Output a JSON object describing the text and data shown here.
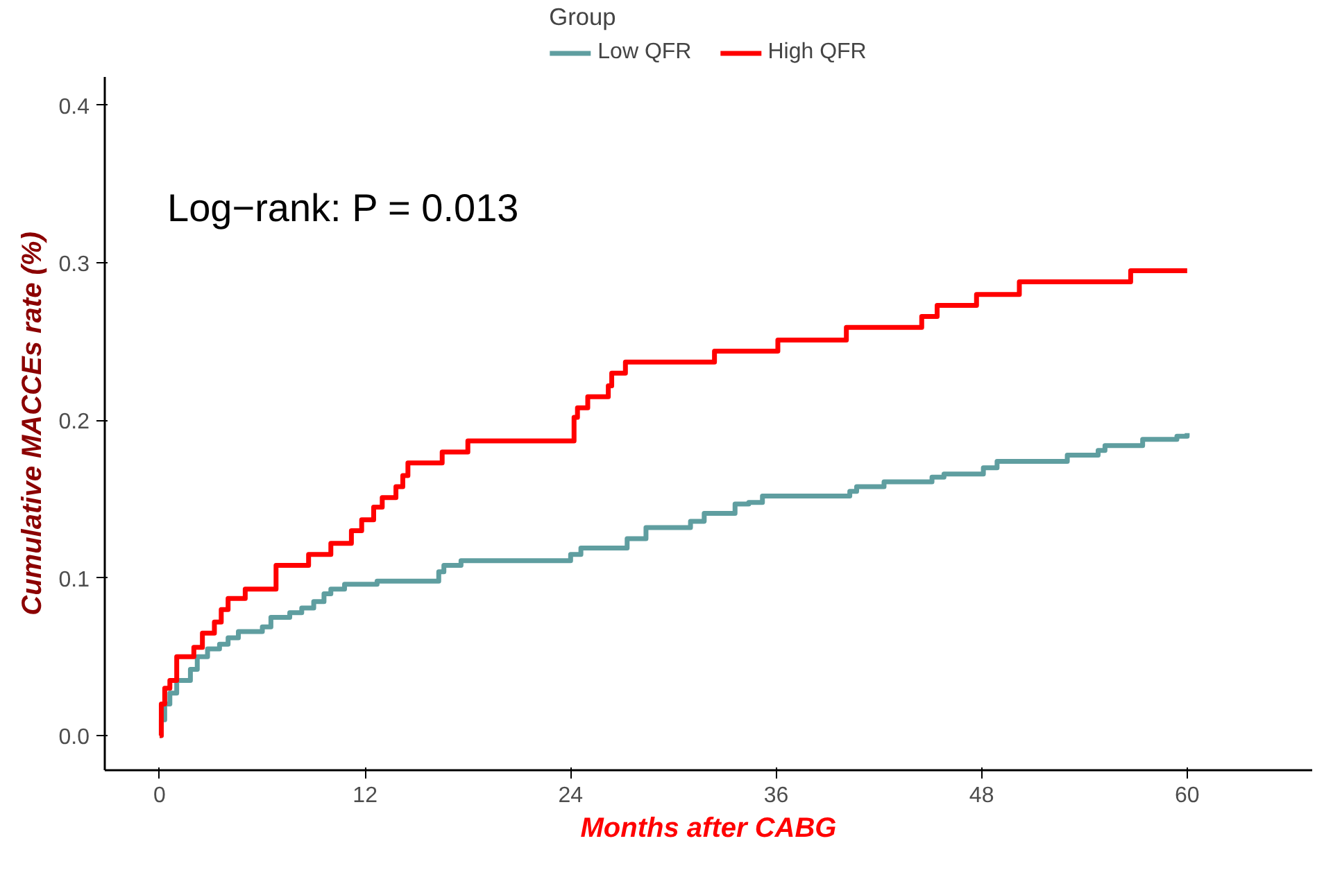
{
  "chart_data": {
    "type": "step",
    "xlabel": "Months after CABG",
    "ylabel": "Cumulative MACCEs rate (%)",
    "legend_title": "Group",
    "legend": "top",
    "grid": false,
    "annotations": [
      "Log−rank: P = 0.013"
    ],
    "xlim": [
      -3.2,
      67.3
    ],
    "xticks": [
      0,
      12,
      24,
      36,
      48,
      60
    ],
    "ylim": [
      -0.022,
      0.418
    ],
    "yticks": [
      {
        "value": 0,
        "label": "0.0"
      },
      {
        "value": 0.1,
        "label": "0.1"
      },
      {
        "value": 0.2,
        "label": "0.2"
      },
      {
        "value": 0.3,
        "label": "0.3"
      },
      {
        "value": 0.4,
        "label": "0.4"
      }
    ],
    "series": [
      {
        "name": "Low QFR",
        "color": "#5f9ea0",
        "x": [
          0,
          0.1,
          0.3,
          0.6,
          1.0,
          1.8,
          2.2,
          2.8,
          3.5,
          4,
          4.6,
          6,
          6.5,
          7.6,
          8.3,
          9,
          9.6,
          10,
          10.8,
          12.7,
          16.3,
          16.6,
          17.6,
          24,
          24.6,
          27.3,
          28.4,
          31,
          31.8,
          33.6,
          34.4,
          35.2,
          40.3,
          40.7,
          42.3,
          45.1,
          45.8,
          48.1,
          48.9,
          53,
          54.8,
          55.2,
          57.4,
          59.4,
          60
        ],
        "values": [
          0,
          0.01,
          0.02,
          0.027,
          0.035,
          0.042,
          0.05,
          0.055,
          0.058,
          0.062,
          0.066,
          0.069,
          0.075,
          0.078,
          0.081,
          0.085,
          0.09,
          0.093,
          0.096,
          0.098,
          0.104,
          0.108,
          0.111,
          0.115,
          0.119,
          0.125,
          0.132,
          0.136,
          0.141,
          0.147,
          0.148,
          0.152,
          0.155,
          0.158,
          0.161,
          0.164,
          0.166,
          0.17,
          0.174,
          0.178,
          0.181,
          0.184,
          0.188,
          0.19,
          0.192
        ]
      },
      {
        "name": "High QFR",
        "color": "#ff0000",
        "x": [
          0,
          0.1,
          0.3,
          0.6,
          1,
          2,
          2.5,
          3.2,
          3.6,
          4,
          5,
          6.8,
          8.7,
          10,
          11.2,
          11.8,
          12.5,
          13,
          13.8,
          14.2,
          14.5,
          16.5,
          18,
          24.2,
          24.4,
          25,
          26.2,
          26.4,
          27.2,
          32.4,
          36.1,
          40.1,
          44.5,
          45.4,
          47.7,
          50.2,
          56.7,
          60
        ],
        "values": [
          0,
          0.02,
          0.03,
          0.035,
          0.05,
          0.056,
          0.065,
          0.072,
          0.08,
          0.087,
          0.093,
          0.108,
          0.115,
          0.122,
          0.13,
          0.137,
          0.145,
          0.151,
          0.158,
          0.165,
          0.173,
          0.18,
          0.187,
          0.202,
          0.208,
          0.215,
          0.222,
          0.23,
          0.237,
          0.244,
          0.251,
          0.259,
          0.266,
          0.273,
          0.28,
          0.288,
          0.295,
          0.295
        ]
      }
    ]
  }
}
